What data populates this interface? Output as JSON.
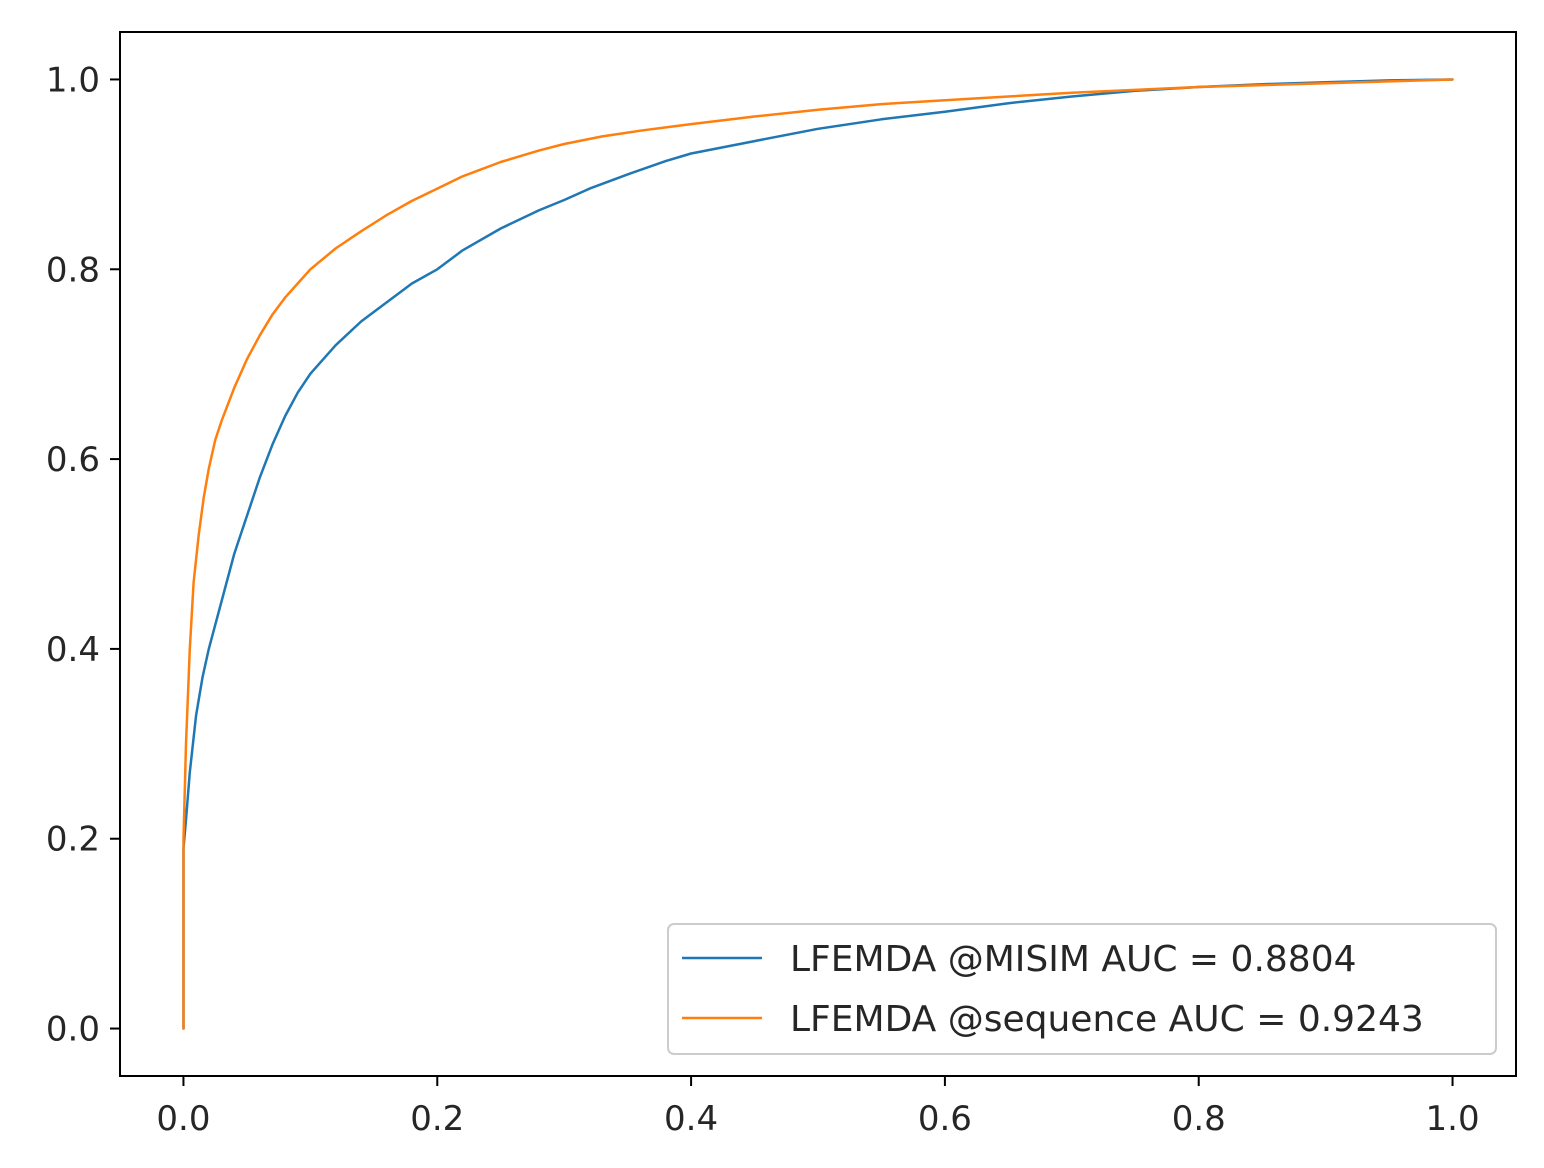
{
  "chart_data": {
    "type": "line",
    "title": "",
    "xlabel": "",
    "ylabel": "",
    "xlim": [
      -0.05,
      1.05
    ],
    "ylim": [
      -0.05,
      1.05
    ],
    "grid": false,
    "legend_position": "bottom-right",
    "x_ticks": [
      {
        "value": 0.0,
        "label": "0.0"
      },
      {
        "value": 0.2,
        "label": "0.2"
      },
      {
        "value": 0.4,
        "label": "0.4"
      },
      {
        "value": 0.6,
        "label": "0.6"
      },
      {
        "value": 0.8,
        "label": "0.8"
      },
      {
        "value": 1.0,
        "label": "1.0"
      }
    ],
    "y_ticks": [
      {
        "value": 0.0,
        "label": "0.0"
      },
      {
        "value": 0.2,
        "label": "0.2"
      },
      {
        "value": 0.4,
        "label": "0.4"
      },
      {
        "value": 0.6,
        "label": "0.6"
      },
      {
        "value": 0.8,
        "label": "0.8"
      },
      {
        "value": 1.0,
        "label": "1.0"
      }
    ],
    "series": [
      {
        "name": "LFEMDA @MISIM AUC = 0.8804",
        "color": "#1f77b4",
        "x": [
          0.0,
          0.0,
          0.002,
          0.005,
          0.01,
          0.015,
          0.02,
          0.03,
          0.04,
          0.05,
          0.06,
          0.07,
          0.08,
          0.09,
          0.1,
          0.12,
          0.14,
          0.16,
          0.18,
          0.2,
          0.22,
          0.25,
          0.28,
          0.3,
          0.32,
          0.35,
          0.38,
          0.4,
          0.45,
          0.5,
          0.55,
          0.6,
          0.65,
          0.7,
          0.75,
          0.8,
          0.85,
          0.9,
          0.95,
          1.0
        ],
        "y": [
          0.0,
          0.19,
          0.22,
          0.27,
          0.33,
          0.37,
          0.4,
          0.45,
          0.5,
          0.54,
          0.58,
          0.615,
          0.645,
          0.67,
          0.69,
          0.72,
          0.745,
          0.765,
          0.785,
          0.8,
          0.82,
          0.843,
          0.862,
          0.873,
          0.885,
          0.9,
          0.914,
          0.922,
          0.935,
          0.948,
          0.958,
          0.966,
          0.975,
          0.982,
          0.988,
          0.992,
          0.995,
          0.997,
          0.999,
          1.0
        ]
      },
      {
        "name": "LFEMDA @sequence AUC = 0.9243",
        "color": "#ff7f0e",
        "x": [
          0.0,
          0.0,
          0.002,
          0.005,
          0.008,
          0.012,
          0.016,
          0.02,
          0.025,
          0.03,
          0.04,
          0.05,
          0.06,
          0.07,
          0.08,
          0.09,
          0.1,
          0.12,
          0.14,
          0.16,
          0.18,
          0.2,
          0.22,
          0.25,
          0.28,
          0.3,
          0.33,
          0.36,
          0.4,
          0.45,
          0.5,
          0.55,
          0.6,
          0.65,
          0.7,
          0.75,
          0.8,
          0.85,
          0.9,
          0.95,
          1.0
        ],
        "y": [
          0.0,
          0.2,
          0.3,
          0.4,
          0.47,
          0.52,
          0.56,
          0.59,
          0.62,
          0.64,
          0.675,
          0.705,
          0.73,
          0.752,
          0.77,
          0.785,
          0.8,
          0.822,
          0.84,
          0.857,
          0.872,
          0.885,
          0.898,
          0.913,
          0.925,
          0.932,
          0.94,
          0.946,
          0.953,
          0.961,
          0.968,
          0.974,
          0.978,
          0.982,
          0.986,
          0.989,
          0.992,
          0.994,
          0.996,
          0.998,
          1.0
        ]
      }
    ]
  }
}
